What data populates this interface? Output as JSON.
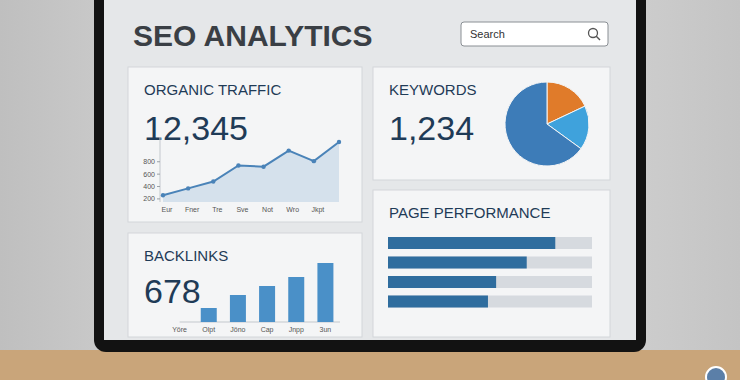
{
  "header": {
    "title": "SEO ANALYTICS",
    "search": "Search"
  },
  "chart_data": [
    {
      "type": "line",
      "title": "ORGANIC TRAFFIC",
      "subtitle": "12,345",
      "categories": [
        "Eur",
        "Fner",
        "Tre",
        "Sve",
        "Not",
        "Wro",
        "Jkpt",
        null
      ],
      "values": [
        260,
        370,
        480,
        740,
        720,
        980,
        810,
        1120
      ],
      "color": "#4a83b8",
      "ylim": [
        150,
        1200
      ],
      "yticks": [
        200,
        400,
        600,
        800
      ],
      "grid": false
    },
    {
      "type": "pie",
      "title": "KEYWORDS",
      "subtitle": "1,234",
      "values": [
        18,
        17,
        65
      ],
      "colors": [
        "#e07b2a",
        "#3fa2dc",
        "#3d7cb8"
      ]
    },
    {
      "type": "bar",
      "title": "BACKLINKS",
      "subtitle": "678",
      "categories": [
        "Yöre",
        "Olpt",
        "Jöno",
        "Cap",
        "Jnpp",
        "3un"
      ],
      "values": [
        null,
        14,
        27,
        36,
        45,
        59
      ],
      "color": "#4a90c8",
      "ylim": [
        0,
        60
      ],
      "tick_labels": "x"
    },
    {
      "type": "bar",
      "orientation": "horizontal",
      "title": "PAGE PERFORMANCE",
      "categories": [
        null,
        null,
        null,
        null
      ],
      "values": [
        82,
        68,
        53,
        49
      ],
      "color": "#2f6d9e",
      "xlim": [
        0,
        100
      ],
      "tick_labels": false
    }
  ]
}
